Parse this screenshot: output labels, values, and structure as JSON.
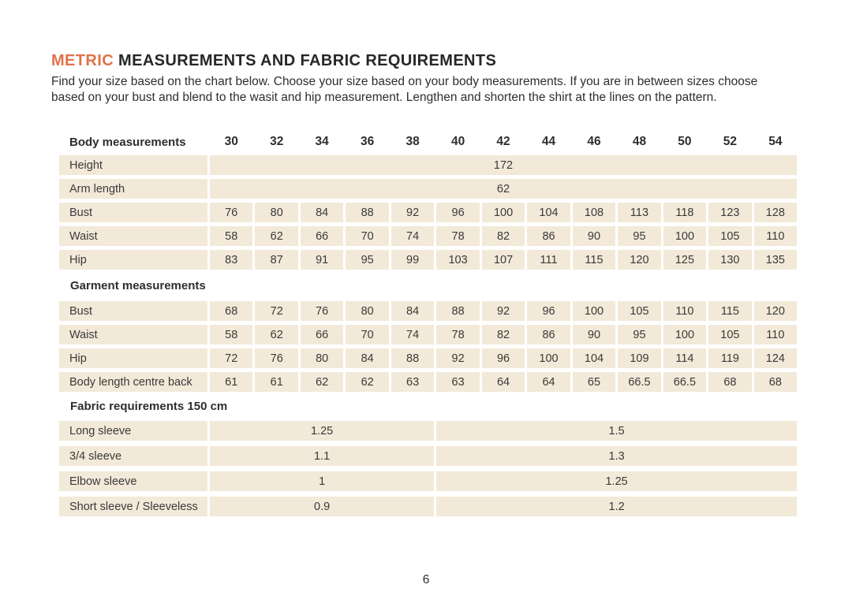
{
  "page": {
    "title_highlight": "METRIC",
    "title_rest": " MEASUREMENTS AND FABRIC REQUIREMENTS",
    "intro_lines": [
      "Find your size based on the chart below. Choose your size based on your body measurements. If you are in between sizes choose",
      "based on your bust and blend to the wasit and hip measurement. Lengthen and shorten the shirt at the lines on the pattern."
    ],
    "page_number": "6"
  },
  "colors": {
    "accent_orange": "#E0734B",
    "cell_beige": "#F2E9D8",
    "text_dark": "#2D2D2D"
  },
  "table": {
    "sizes_header_label": "Body measurements",
    "sizes": [
      "30",
      "32",
      "34",
      "36",
      "38",
      "40",
      "42",
      "44",
      "46",
      "48",
      "50",
      "52",
      "54"
    ],
    "body_rows": [
      {
        "label": "Height",
        "span_value": "172"
      },
      {
        "label": "Arm length",
        "span_value": "62"
      },
      {
        "label": "Bust",
        "values": [
          "76",
          "80",
          "84",
          "88",
          "92",
          "96",
          "100",
          "104",
          "108",
          "113",
          "118",
          "123",
          "128"
        ]
      },
      {
        "label": "Waist",
        "values": [
          "58",
          "62",
          "66",
          "70",
          "74",
          "78",
          "82",
          "86",
          "90",
          "95",
          "100",
          "105",
          "110"
        ]
      },
      {
        "label": "Hip",
        "values": [
          "83",
          "87",
          "91",
          "95",
          "99",
          "103",
          "107",
          "111",
          "115",
          "120",
          "125",
          "130",
          "135"
        ]
      }
    ],
    "garment_section_label": "Garment measurements",
    "garment_rows": [
      {
        "label": "Bust",
        "values": [
          "68",
          "72",
          "76",
          "80",
          "84",
          "88",
          "92",
          "96",
          "100",
          "105",
          "110",
          "115",
          "120"
        ]
      },
      {
        "label": "Waist",
        "values": [
          "58",
          "62",
          "66",
          "70",
          "74",
          "78",
          "82",
          "86",
          "90",
          "95",
          "100",
          "105",
          "110"
        ]
      },
      {
        "label": "Hip",
        "values": [
          "72",
          "76",
          "80",
          "84",
          "88",
          "92",
          "96",
          "100",
          "104",
          "109",
          "114",
          "119",
          "124"
        ]
      },
      {
        "label": "Body length centre back",
        "values": [
          "61",
          "61",
          "62",
          "62",
          "63",
          "63",
          "64",
          "64",
          "65",
          "66.5",
          "66.5",
          "68",
          "68"
        ]
      }
    ],
    "fabric_section_label": "Fabric requirements 150 cm",
    "fabric_rows": [
      {
        "label": "Long sleeve",
        "left": "1.25",
        "right": "1.5"
      },
      {
        "label": "3/4 sleeve",
        "left": "1.1",
        "right": "1.3"
      },
      {
        "label": "Elbow sleeve",
        "left": "1",
        "right": "1.25"
      },
      {
        "label": "Short sleeve / Sleeveless",
        "left": "0.9",
        "right": "1.2"
      }
    ]
  }
}
